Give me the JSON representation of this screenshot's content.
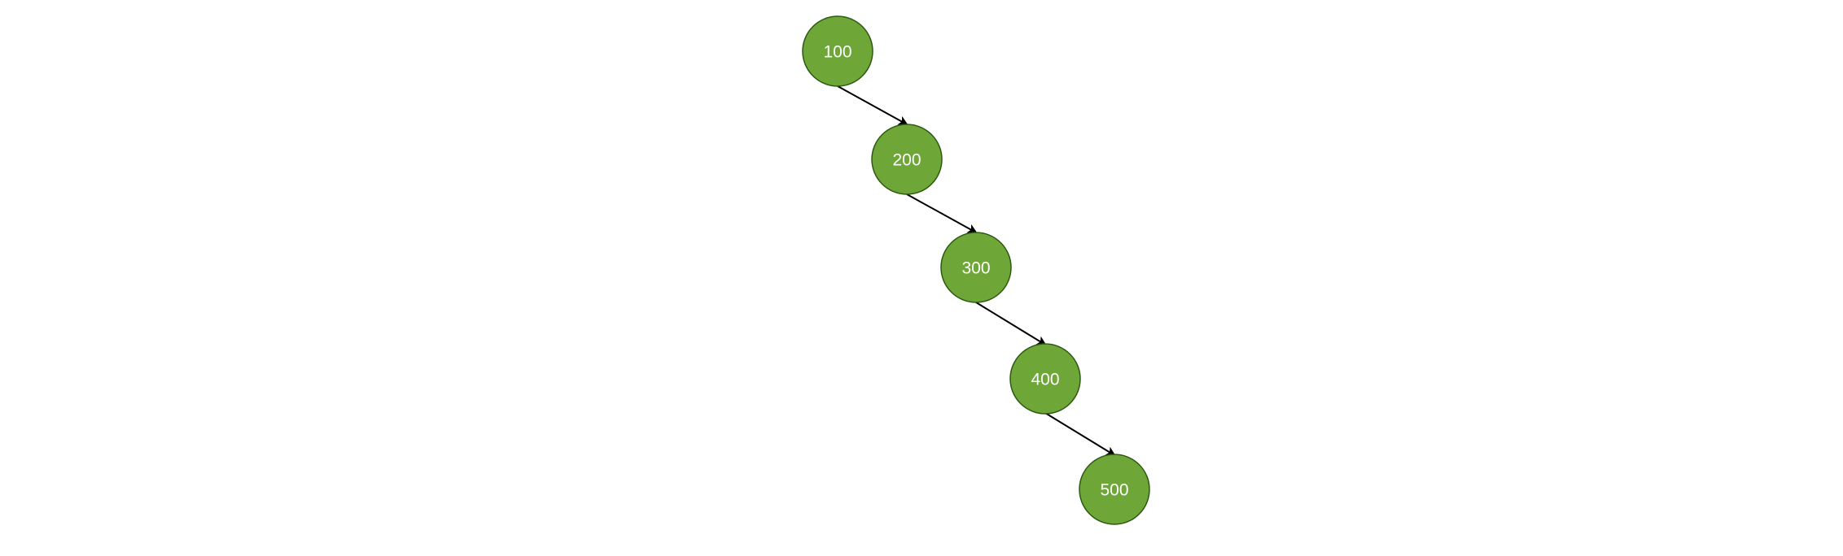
{
  "diagram": {
    "node_fill": "#6ea637",
    "node_stroke": "#2d5a12",
    "edge_color": "#000000",
    "nodes": [
      {
        "id": "n100",
        "label": "100"
      },
      {
        "id": "n200",
        "label": "200"
      },
      {
        "id": "n300",
        "label": "300"
      },
      {
        "id": "n400",
        "label": "400"
      },
      {
        "id": "n500",
        "label": "500"
      }
    ],
    "edges": [
      {
        "from": "n100",
        "to": "n200"
      },
      {
        "from": "n200",
        "to": "n300"
      },
      {
        "from": "n300",
        "to": "n400"
      },
      {
        "from": "n400",
        "to": "n500"
      }
    ]
  }
}
